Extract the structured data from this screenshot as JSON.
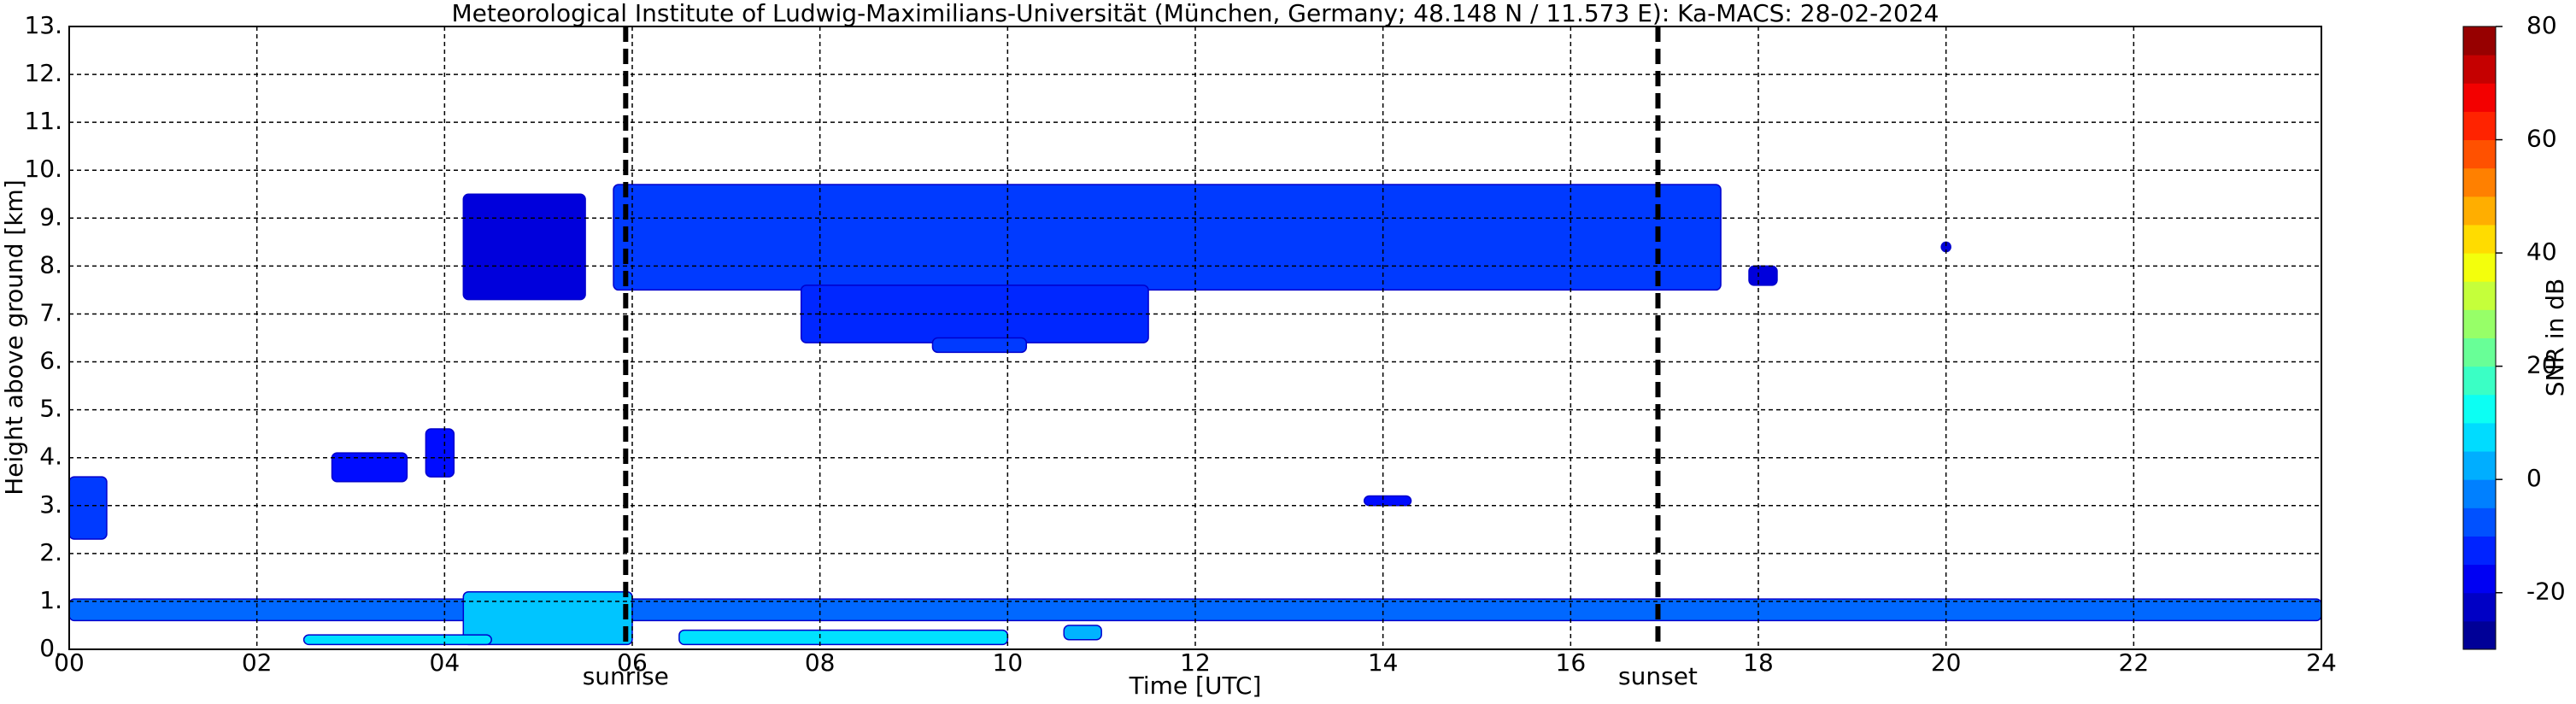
{
  "chart_data": {
    "type": "time-height",
    "title": "Meteorological Institute of Ludwig-Maximilians-Universität (München, Germany; 48.148 N / 11.573 E):    Ka-MACS: 28-02-2024",
    "x_label": "Time [UTC]",
    "y_label": "Height above ground [km]",
    "colorbar_label": "SNR in dB",
    "xlim": [
      0,
      24
    ],
    "xticks": [
      {
        "value": 0,
        "label": "00"
      },
      {
        "value": 2,
        "label": "02"
      },
      {
        "value": 4,
        "label": "04"
      },
      {
        "value": 6,
        "label": "06"
      },
      {
        "value": 8,
        "label": "08"
      },
      {
        "value": 10,
        "label": "10"
      },
      {
        "value": 12,
        "label": "12"
      },
      {
        "value": 14,
        "label": "14"
      },
      {
        "value": 16,
        "label": "16"
      },
      {
        "value": 18,
        "label": "18"
      },
      {
        "value": 20,
        "label": "20"
      },
      {
        "value": 22,
        "label": "22"
      },
      {
        "value": 24,
        "label": "24"
      }
    ],
    "ylim": [
      0,
      13
    ],
    "yticks": [
      {
        "value": 0,
        "label": "0."
      },
      {
        "value": 1,
        "label": "1."
      },
      {
        "value": 2,
        "label": "2."
      },
      {
        "value": 3,
        "label": "3."
      },
      {
        "value": 4,
        "label": "4."
      },
      {
        "value": 5,
        "label": "5."
      },
      {
        "value": 6,
        "label": "6."
      },
      {
        "value": 7,
        "label": "7."
      },
      {
        "value": 8,
        "label": "8."
      },
      {
        "value": 9,
        "label": "9."
      },
      {
        "value": 10,
        "label": "10."
      },
      {
        "value": 11,
        "label": "11."
      },
      {
        "value": 12,
        "label": "12."
      },
      {
        "value": 13,
        "label": "13."
      }
    ],
    "clim": [
      -30,
      80
    ],
    "cticks": [
      -20,
      0,
      20,
      40,
      60,
      80
    ],
    "grid": true,
    "annotations": [
      {
        "label": "sunrise",
        "x": 5.93
      },
      {
        "label": "sunset",
        "x": 16.93
      }
    ],
    "echoes": [
      {
        "x": [
          0,
          24
        ],
        "y": [
          0.6,
          1.05
        ],
        "snr": -5
      },
      {
        "x": [
          4.2,
          6.0
        ],
        "y": [
          0.1,
          1.2
        ],
        "snr": 5
      },
      {
        "x": [
          2.5,
          4.5
        ],
        "y": [
          0.1,
          0.3
        ],
        "snr": 8
      },
      {
        "x": [
          6.5,
          10.0
        ],
        "y": [
          0.1,
          0.4
        ],
        "snr": 8
      },
      {
        "x": [
          10.6,
          11.0
        ],
        "y": [
          0.2,
          0.5
        ],
        "snr": 3
      },
      {
        "x": [
          0,
          0.4
        ],
        "y": [
          2.3,
          3.6
        ],
        "snr": -10
      },
      {
        "x": [
          2.8,
          3.6
        ],
        "y": [
          3.5,
          4.1
        ],
        "snr": -15
      },
      {
        "x": [
          3.8,
          4.1
        ],
        "y": [
          3.6,
          4.6
        ],
        "snr": -15
      },
      {
        "x": [
          4.2,
          5.5
        ],
        "y": [
          7.3,
          9.5
        ],
        "snr": -20
      },
      {
        "x": [
          5.8,
          17.6
        ],
        "y": [
          7.5,
          9.7
        ],
        "snr": -10
      },
      {
        "x": [
          7.8,
          11.5
        ],
        "y": [
          6.4,
          7.6
        ],
        "snr": -12
      },
      {
        "x": [
          9.2,
          10.2
        ],
        "y": [
          6.2,
          6.5
        ],
        "snr": -10
      },
      {
        "x": [
          13.8,
          14.3
        ],
        "y": [
          3.0,
          3.2
        ],
        "snr": -15
      },
      {
        "x": [
          17.9,
          18.2
        ],
        "y": [
          7.6,
          8.0
        ],
        "snr": -20
      },
      {
        "x": [
          19.95,
          20.05
        ],
        "y": [
          8.3,
          8.5
        ],
        "snr": -20
      }
    ]
  }
}
